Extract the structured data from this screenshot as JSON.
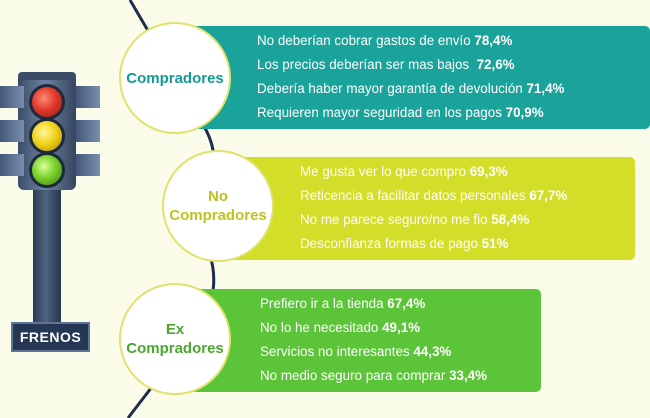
{
  "badge": {
    "label": "FRENOS"
  },
  "groups": [
    {
      "title_lines": [
        "Compradores"
      ],
      "items": [
        {
          "text": "No deberían cobrar gastos de envío",
          "value": "78,4%"
        },
        {
          "text": "Los precios deberían ser mas bajos",
          "value": "72,6%"
        },
        {
          "text": "Debería haber mayor garantía de devolución",
          "value": "71,4%"
        },
        {
          "text": "Requieren mayor seguridad en los pagos",
          "value": "70,9%"
        }
      ]
    },
    {
      "title_lines": [
        "No",
        "Compradores"
      ],
      "items": [
        {
          "text": "Me gusta ver lo que compro",
          "value": "69,3%"
        },
        {
          "text": "Reticencia a facilitar datos personales",
          "value": "67,7%"
        },
        {
          "text": "No me parece seguro/no me fio",
          "value": "58,4%"
        },
        {
          "text": "Desconfianza formas de pago",
          "value": "51%"
        }
      ]
    },
    {
      "title_lines": [
        "Ex",
        "Compradores"
      ],
      "items": [
        {
          "text": "Prefiero ir a la tienda",
          "value": "67,4%"
        },
        {
          "text": "No lo he necesitado",
          "value": "49,1%"
        },
        {
          "text": "Servicios no interesantes",
          "value": "44,3%"
        },
        {
          "text": "No medio seguro para comprar",
          "value": "33,4%"
        }
      ]
    }
  ],
  "colors": {
    "compradores": "#1aa39a",
    "no_compradores": "#d2de28",
    "ex_compradores": "#5cc438",
    "connector": "#1f2d4a"
  }
}
